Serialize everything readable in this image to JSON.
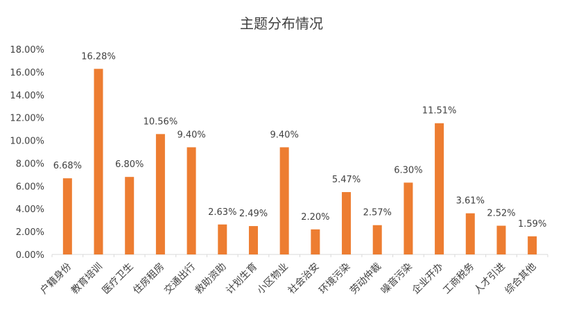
{
  "chart_data": {
    "type": "bar",
    "title": "主题分布情况",
    "categories": [
      "户籍身份",
      "教育培训",
      "医疗卫生",
      "住房租房",
      "交通出行",
      "救助资助",
      "计划生育",
      "小区物业",
      "社会治安",
      "环境污染",
      "劳动仲裁",
      "噪音污染",
      "企业开办",
      "工商税务",
      "人才引进",
      "综合其他"
    ],
    "values": [
      6.68,
      16.28,
      6.8,
      10.56,
      9.4,
      2.63,
      2.49,
      9.4,
      2.2,
      5.47,
      2.57,
      6.3,
      11.51,
      3.61,
      2.52,
      1.59
    ],
    "value_labels": [
      "6.68%",
      "16.28%",
      "6.80%",
      "10.56%",
      "9.40%",
      "2.63%",
      "2.49%",
      "9.40%",
      "2.20%",
      "5.47%",
      "2.57%",
      "6.30%",
      "11.51%",
      "3.61%",
      "2.52%",
      "1.59%"
    ],
    "y_ticks": [
      "0.00%",
      "2.00%",
      "4.00%",
      "6.00%",
      "8.00%",
      "10.00%",
      "12.00%",
      "14.00%",
      "16.00%",
      "18.00%"
    ],
    "ylim": [
      0,
      18
    ],
    "grid": false,
    "legend": "none",
    "bar_color": "#ED7D31",
    "text_color": "#404040",
    "axis_color": "#D9D9D9"
  }
}
